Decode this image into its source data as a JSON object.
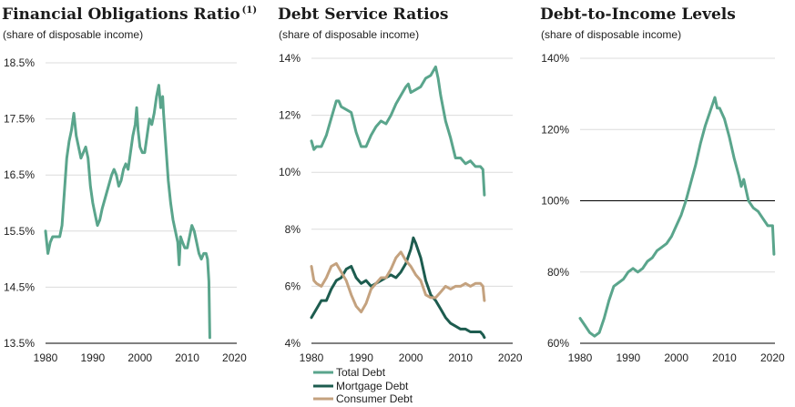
{
  "colors": {
    "total": "#5aa58c",
    "mortgage": "#1d5c4f",
    "consumer": "#c4a27f",
    "grid": "#dcdcdc",
    "axis": "#000000"
  },
  "chart_data": [
    {
      "type": "line",
      "title": "Financial Obligations Ratio",
      "title_sup": "(1)",
      "subtitle": "(share of disposable income)",
      "xlim": [
        1980,
        2020.5
      ],
      "ylim": [
        13.5,
        18.5
      ],
      "xticks": [
        1980,
        1990,
        2000,
        2010,
        2020
      ],
      "yticks": [
        13.5,
        14.5,
        15.5,
        16.5,
        17.5,
        18.5
      ],
      "ytick_labels": [
        "13.5%",
        "14.5%",
        "15.5%",
        "16.5%",
        "17.5%",
        "18.5%"
      ],
      "series": [
        {
          "name": "Financial Obligations Ratio",
          "color_key": "total",
          "points": [
            [
              1980,
              15.5
            ],
            [
              1980.5,
              15.1
            ],
            [
              1981,
              15.3
            ],
            [
              1981.5,
              15.4
            ],
            [
              1982,
              15.4
            ],
            [
              1983,
              15.4
            ],
            [
              1983.5,
              15.6
            ],
            [
              1984,
              16.2
            ],
            [
              1984.5,
              16.8
            ],
            [
              1985,
              17.1
            ],
            [
              1985.5,
              17.3
            ],
            [
              1986,
              17.6
            ],
            [
              1986.5,
              17.2
            ],
            [
              1987,
              17.0
            ],
            [
              1987.5,
              16.8
            ],
            [
              1988,
              16.9
            ],
            [
              1988.5,
              17.0
            ],
            [
              1989,
              16.8
            ],
            [
              1989.5,
              16.3
            ],
            [
              1990,
              16.0
            ],
            [
              1990.5,
              15.8
            ],
            [
              1991,
              15.6
            ],
            [
              1991.5,
              15.7
            ],
            [
              1992,
              15.9
            ],
            [
              1993,
              16.2
            ],
            [
              1994,
              16.5
            ],
            [
              1994.5,
              16.6
            ],
            [
              1995,
              16.5
            ],
            [
              1995.5,
              16.3
            ],
            [
              1996,
              16.4
            ],
            [
              1996.5,
              16.6
            ],
            [
              1997,
              16.7
            ],
            [
              1997.5,
              16.6
            ],
            [
              1998,
              16.9
            ],
            [
              1998.5,
              17.2
            ],
            [
              1999,
              17.4
            ],
            [
              1999.3,
              17.7
            ],
            [
              1999.6,
              17.3
            ],
            [
              2000,
              17.0
            ],
            [
              2000.5,
              16.9
            ],
            [
              2001,
              16.9
            ],
            [
              2001.5,
              17.2
            ],
            [
              2002,
              17.5
            ],
            [
              2002.5,
              17.4
            ],
            [
              2003,
              17.6
            ],
            [
              2003.5,
              17.9
            ],
            [
              2004,
              18.1
            ],
            [
              2004.4,
              17.7
            ],
            [
              2004.8,
              17.9
            ],
            [
              2005,
              17.6
            ],
            [
              2005.5,
              17.0
            ],
            [
              2006,
              16.4
            ],
            [
              2006.5,
              16.0
            ],
            [
              2007,
              15.7
            ],
            [
              2007.5,
              15.5
            ],
            [
              2008,
              15.3
            ],
            [
              2008.3,
              14.9
            ],
            [
              2008.6,
              15.4
            ],
            [
              2009,
              15.3
            ],
            [
              2009.5,
              15.2
            ],
            [
              2010,
              15.2
            ],
            [
              2010.5,
              15.4
            ],
            [
              2011,
              15.6
            ],
            [
              2011.5,
              15.5
            ],
            [
              2012,
              15.3
            ],
            [
              2012.5,
              15.1
            ],
            [
              2013,
              15.0
            ],
            [
              2013.5,
              15.1
            ],
            [
              2014,
              15.1
            ],
            [
              2014.3,
              15.0
            ],
            [
              2014.6,
              14.6
            ],
            [
              2014.8,
              13.6
            ]
          ]
        }
      ]
    },
    {
      "type": "line",
      "title": "Debt Service Ratios",
      "subtitle": "(share of disposable income)",
      "xlim": [
        1980,
        2020.5
      ],
      "ylim": [
        4,
        14
      ],
      "xticks": [
        1980,
        1990,
        2000,
        2010,
        2020
      ],
      "yticks": [
        4,
        6,
        8,
        10,
        12,
        14
      ],
      "ytick_labels": [
        "4%",
        "6%",
        "8%",
        "10%",
        "12%",
        "14%"
      ],
      "legend": [
        "Total Debt",
        "Mortgage Debt",
        "Consumer Debt"
      ],
      "series": [
        {
          "name": "Total Debt",
          "color_key": "total",
          "points": [
            [
              1980,
              11.1
            ],
            [
              1980.5,
              10.8
            ],
            [
              1981,
              10.9
            ],
            [
              1982,
              10.9
            ],
            [
              1983,
              11.3
            ],
            [
              1984,
              11.9
            ],
            [
              1985,
              12.5
            ],
            [
              1985.5,
              12.5
            ],
            [
              1986,
              12.3
            ],
            [
              1987,
              12.2
            ],
            [
              1988,
              12.1
            ],
            [
              1989,
              11.4
            ],
            [
              1990,
              10.9
            ],
            [
              1991,
              10.9
            ],
            [
              1992,
              11.3
            ],
            [
              1993,
              11.6
            ],
            [
              1994,
              11.8
            ],
            [
              1995,
              11.7
            ],
            [
              1996,
              12.0
            ],
            [
              1997,
              12.4
            ],
            [
              1998,
              12.7
            ],
            [
              1999,
              13.0
            ],
            [
              1999.5,
              13.1
            ],
            [
              2000,
              12.8
            ],
            [
              2001,
              12.9
            ],
            [
              2002,
              13.0
            ],
            [
              2003,
              13.3
            ],
            [
              2004,
              13.4
            ],
            [
              2005,
              13.7
            ],
            [
              2005.5,
              13.3
            ],
            [
              2006,
              12.7
            ],
            [
              2007,
              11.8
            ],
            [
              2008,
              11.2
            ],
            [
              2009,
              10.5
            ],
            [
              2010,
              10.5
            ],
            [
              2011,
              10.3
            ],
            [
              2012,
              10.4
            ],
            [
              2013,
              10.2
            ],
            [
              2014,
              10.2
            ],
            [
              2014.5,
              10.1
            ],
            [
              2014.8,
              9.2
            ]
          ]
        },
        {
          "name": "Mortgage Debt",
          "color_key": "mortgage",
          "points": [
            [
              1980,
              4.9
            ],
            [
              1981,
              5.2
            ],
            [
              1982,
              5.5
            ],
            [
              1983,
              5.5
            ],
            [
              1984,
              5.9
            ],
            [
              1985,
              6.2
            ],
            [
              1986,
              6.3
            ],
            [
              1987,
              6.6
            ],
            [
              1988,
              6.7
            ],
            [
              1989,
              6.3
            ],
            [
              1990,
              6.1
            ],
            [
              1991,
              6.2
            ],
            [
              1992,
              6.0
            ],
            [
              1993,
              6.1
            ],
            [
              1994,
              6.2
            ],
            [
              1995,
              6.3
            ],
            [
              1996,
              6.4
            ],
            [
              1997,
              6.3
            ],
            [
              1998,
              6.5
            ],
            [
              1999,
              6.8
            ],
            [
              2000,
              7.3
            ],
            [
              2000.5,
              7.7
            ],
            [
              2001,
              7.5
            ],
            [
              2002,
              7.0
            ],
            [
              2003,
              6.2
            ],
            [
              2004,
              5.7
            ],
            [
              2005,
              5.5
            ],
            [
              2006,
              5.2
            ],
            [
              2007,
              4.9
            ],
            [
              2008,
              4.7
            ],
            [
              2009,
              4.6
            ],
            [
              2010,
              4.5
            ],
            [
              2011,
              4.5
            ],
            [
              2012,
              4.4
            ],
            [
              2013,
              4.4
            ],
            [
              2014,
              4.4
            ],
            [
              2014.5,
              4.3
            ],
            [
              2014.8,
              4.2
            ]
          ]
        },
        {
          "name": "Consumer Debt",
          "color_key": "consumer",
          "points": [
            [
              1980,
              6.7
            ],
            [
              1980.5,
              6.2
            ],
            [
              1981,
              6.1
            ],
            [
              1982,
              6.0
            ],
            [
              1983,
              6.3
            ],
            [
              1984,
              6.7
            ],
            [
              1985,
              6.8
            ],
            [
              1986,
              6.5
            ],
            [
              1987,
              6.2
            ],
            [
              1988,
              5.7
            ],
            [
              1989,
              5.3
            ],
            [
              1990,
              5.1
            ],
            [
              1991,
              5.4
            ],
            [
              1992,
              5.9
            ],
            [
              1993,
              6.1
            ],
            [
              1994,
              6.3
            ],
            [
              1995,
              6.3
            ],
            [
              1996,
              6.6
            ],
            [
              1997,
              7.0
            ],
            [
              1998,
              7.2
            ],
            [
              1999,
              6.9
            ],
            [
              2000,
              6.7
            ],
            [
              2001,
              6.4
            ],
            [
              2002,
              6.2
            ],
            [
              2003,
              5.7
            ],
            [
              2004,
              5.6
            ],
            [
              2005,
              5.6
            ],
            [
              2006,
              5.8
            ],
            [
              2007,
              6.0
            ],
            [
              2008,
              5.9
            ],
            [
              2009,
              6.0
            ],
            [
              2010,
              6.0
            ],
            [
              2011,
              6.1
            ],
            [
              2012,
              6.0
            ],
            [
              2013,
              6.1
            ],
            [
              2014,
              6.1
            ],
            [
              2014.5,
              6.0
            ],
            [
              2014.8,
              5.5
            ]
          ]
        }
      ]
    },
    {
      "type": "line",
      "title": "Debt-to-Income Levels",
      "subtitle": "(share of disposable income)",
      "xlim": [
        1980,
        2020.5
      ],
      "ylim": [
        60,
        140
      ],
      "xticks": [
        1980,
        1990,
        2000,
        2010,
        2020
      ],
      "yticks": [
        60,
        80,
        100,
        120,
        140
      ],
      "ytick_labels": [
        "60%",
        "80%",
        "100%",
        "120%",
        "140%"
      ],
      "reference_line": 100,
      "series": [
        {
          "name": "Debt-to-Income",
          "color_key": "total",
          "points": [
            [
              1980,
              67
            ],
            [
              1981,
              65
            ],
            [
              1982,
              63
            ],
            [
              1983,
              62
            ],
            [
              1984,
              63
            ],
            [
              1985,
              67
            ],
            [
              1986,
              72
            ],
            [
              1987,
              76
            ],
            [
              1988,
              77
            ],
            [
              1989,
              78
            ],
            [
              1990,
              80
            ],
            [
              1991,
              81
            ],
            [
              1992,
              80
            ],
            [
              1993,
              81
            ],
            [
              1994,
              83
            ],
            [
              1995,
              84
            ],
            [
              1996,
              86
            ],
            [
              1997,
              87
            ],
            [
              1998,
              88
            ],
            [
              1999,
              90
            ],
            [
              2000,
              93
            ],
            [
              2001,
              96
            ],
            [
              2002,
              100
            ],
            [
              2003,
              105
            ],
            [
              2004,
              110
            ],
            [
              2005,
              116
            ],
            [
              2006,
              121
            ],
            [
              2007,
              125
            ],
            [
              2008,
              129
            ],
            [
              2008.5,
              126
            ],
            [
              2009,
              126
            ],
            [
              2010,
              123
            ],
            [
              2011,
              118
            ],
            [
              2012,
              112
            ],
            [
              2013,
              107
            ],
            [
              2013.5,
              104
            ],
            [
              2014,
              106
            ],
            [
              2014.5,
              103
            ],
            [
              2015,
              100
            ],
            [
              2016,
              98
            ],
            [
              2017,
              97
            ],
            [
              2018,
              95
            ],
            [
              2019,
              93
            ],
            [
              2019.5,
              93
            ],
            [
              2020,
              93
            ],
            [
              2020.3,
              85
            ]
          ]
        }
      ]
    }
  ]
}
